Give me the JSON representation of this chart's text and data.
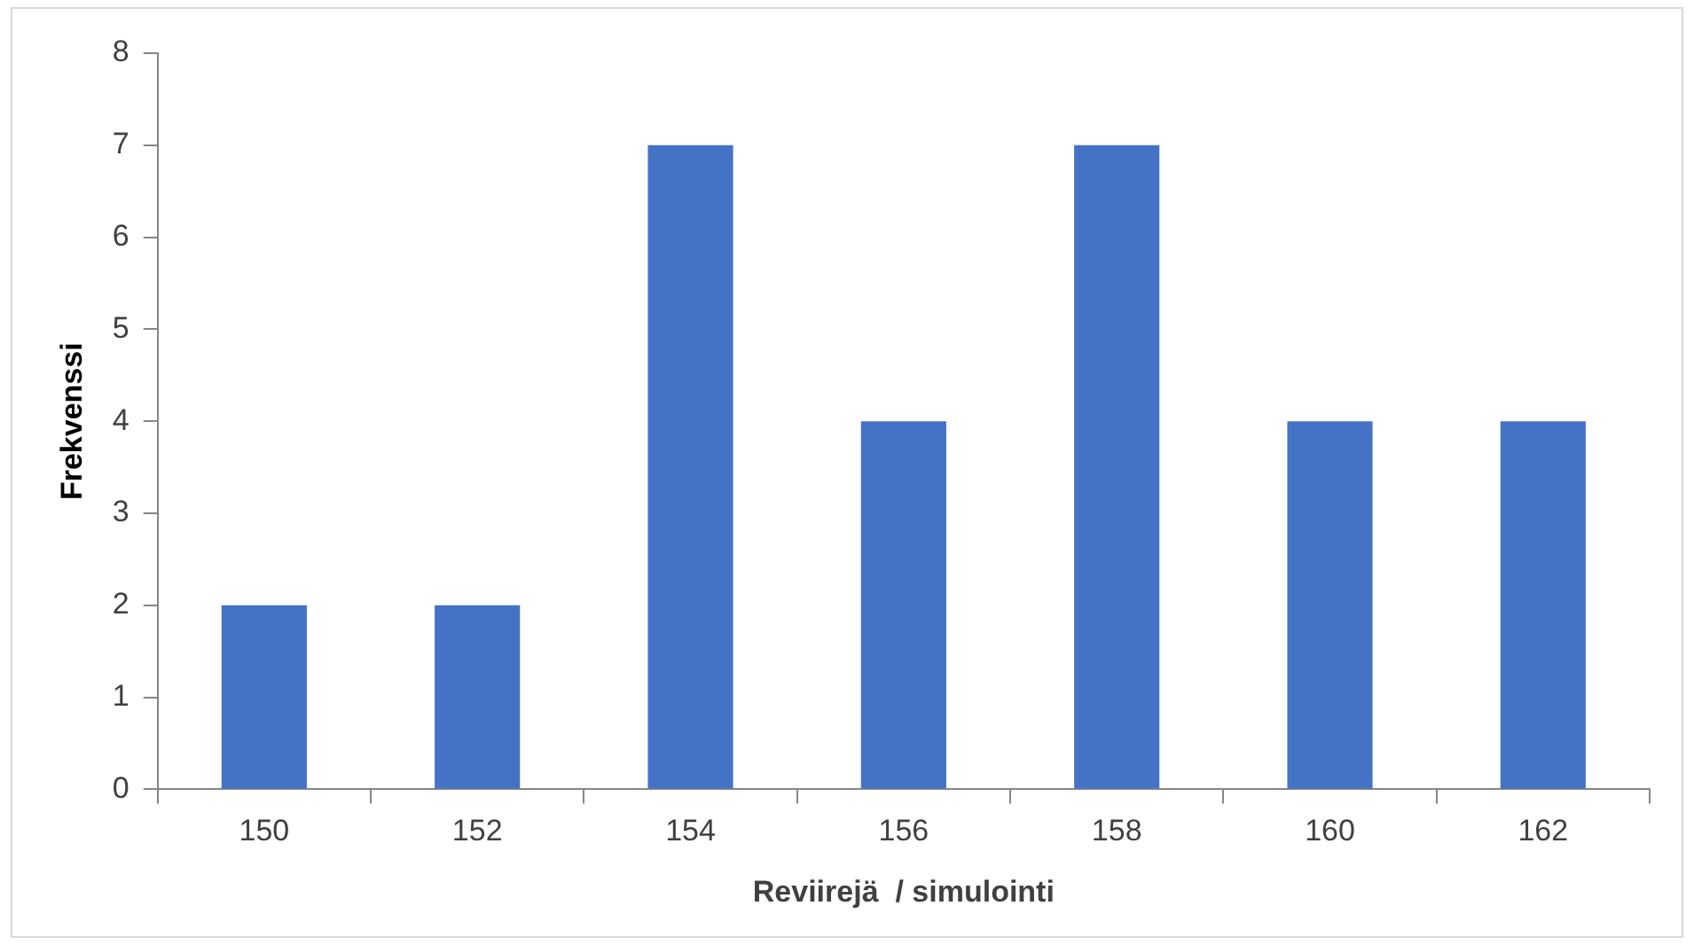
{
  "chart_data": {
    "type": "bar",
    "xlabel": "Reviirejä  / simulointi",
    "ylabel": "Frekvenssi",
    "categories": [
      "150",
      "152",
      "154",
      "156",
      "158",
      "160",
      "162"
    ],
    "values": [
      2,
      2,
      7,
      4,
      7,
      4,
      4
    ],
    "color": "#4472c4",
    "ylim": [
      0,
      8
    ],
    "yticks": [
      0,
      1,
      2,
      3,
      4,
      5,
      6,
      7,
      8
    ],
    "grid": false,
    "legend": false
  }
}
